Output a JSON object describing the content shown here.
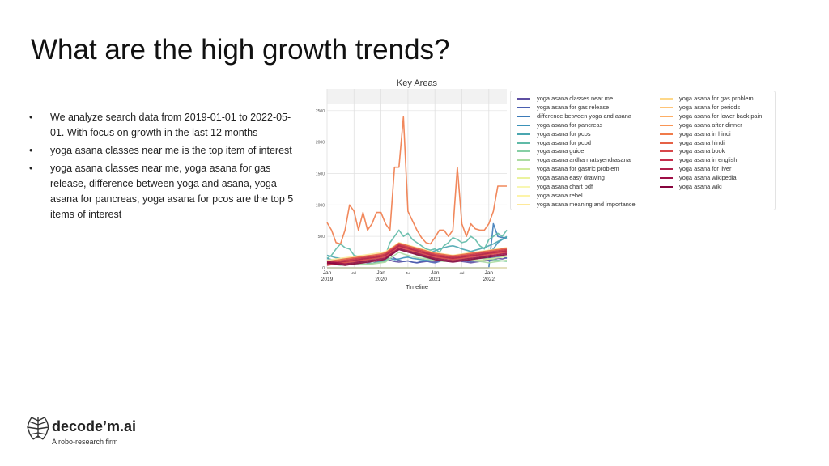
{
  "slide": {
    "title": "What are the high growth trends?",
    "bullets": [
      "We analyze search data from 2019-01-01 to 2022-05-01. With focus on growth in the last 12 months",
      "yoga asana classes near me is the top item of interest",
      "yoga asana classes near me, yoga asana for gas release, difference between yoga and asana, yoga asana for pancreas, yoga asana for pcos are the top 5 items of interest"
    ],
    "bullet_marker": "•"
  },
  "logo": {
    "name": "decode’m.ai",
    "tagline": "A robo-research firm",
    "icon": "brain-icon"
  },
  "chart_data": {
    "type": "line",
    "title": "Key Areas",
    "xlabel": "Timeline",
    "ylabel": "",
    "ylim": [
      0,
      2600
    ],
    "yticks": [
      0,
      500,
      1000,
      1500,
      2000,
      2500
    ],
    "xticks": [
      {
        "date": "2019-01",
        "label": [
          "Jan",
          "2019"
        ]
      },
      {
        "date": "2019-07",
        "label": [
          "Jul"
        ]
      },
      {
        "date": "2020-01",
        "label": [
          "Jan",
          "2020"
        ]
      },
      {
        "date": "2020-07",
        "label": [
          "Jul"
        ]
      },
      {
        "date": "2021-01",
        "label": [
          "Jan",
          "2021"
        ]
      },
      {
        "date": "2021-07",
        "label": [
          "Jul"
        ]
      },
      {
        "date": "2022-01",
        "label": [
          "Jan",
          "2022"
        ]
      }
    ],
    "xrange": [
      "2019-01",
      "2022-05"
    ],
    "grid": true,
    "legend_position": "right",
    "x": [
      "2019-01",
      "2019-02",
      "2019-03",
      "2019-04",
      "2019-05",
      "2019-06",
      "2019-07",
      "2019-08",
      "2019-09",
      "2019-10",
      "2019-11",
      "2019-12",
      "2020-01",
      "2020-02",
      "2020-03",
      "2020-04",
      "2020-05",
      "2020-06",
      "2020-07",
      "2020-08",
      "2020-09",
      "2020-10",
      "2020-11",
      "2020-12",
      "2021-01",
      "2021-02",
      "2021-03",
      "2021-04",
      "2021-05",
      "2021-06",
      "2021-07",
      "2021-08",
      "2021-09",
      "2021-10",
      "2021-11",
      "2021-12",
      "2022-01",
      "2022-02",
      "2022-03",
      "2022-04",
      "2022-05"
    ],
    "series": [
      {
        "name": "yoga asana classes near me",
        "color": "#5e4fa2",
        "values": [
          100,
          90,
          80,
          70,
          60,
          70,
          80,
          100,
          90,
          80,
          70,
          90,
          100,
          110,
          120,
          100,
          90,
          100,
          110,
          90,
          80,
          90,
          100,
          110,
          100,
          120,
          110,
          100,
          150,
          120,
          100,
          90,
          80,
          90,
          100,
          110,
          120,
          130,
          150,
          140,
          160
        ]
      },
      {
        "name": "yoga asana for gas release",
        "color": "#4a5fb0",
        "values": [
          120,
          100,
          90,
          80,
          60,
          50,
          70,
          80,
          60,
          50,
          70,
          80,
          90,
          100,
          200,
          150,
          120,
          100,
          110,
          90,
          80,
          100,
          110,
          90,
          80,
          100,
          120,
          150,
          140,
          130,
          120,
          110,
          100,
          110,
          120,
          130,
          150,
          160,
          170,
          180,
          150
        ]
      },
      {
        "name": "difference between yoga and asana",
        "color": "#3b7ab8",
        "values": [
          0,
          0,
          0,
          0,
          0,
          0,
          0,
          0,
          0,
          0,
          0,
          0,
          0,
          0,
          0,
          0,
          0,
          0,
          0,
          0,
          0,
          0,
          0,
          0,
          0,
          0,
          0,
          0,
          0,
          0,
          0,
          0,
          0,
          0,
          0,
          0,
          0,
          700,
          500,
          480,
          480
        ]
      },
      {
        "name": "yoga asana for pancreas",
        "color": "#3b92b8",
        "values": [
          150,
          130,
          120,
          100,
          90,
          100,
          120,
          110,
          100,
          120,
          130,
          110,
          100,
          120,
          150,
          130,
          140,
          160,
          170,
          150,
          140,
          130,
          120,
          130,
          140,
          150,
          160,
          170,
          180,
          170,
          160,
          150,
          140,
          150,
          160,
          170,
          250,
          300,
          400,
          450,
          480
        ]
      },
      {
        "name": "yoga asana for pcos",
        "color": "#4aa6b0",
        "values": [
          200,
          180,
          160,
          150,
          140,
          150,
          160,
          150,
          140,
          150,
          160,
          170,
          180,
          200,
          220,
          250,
          300,
          280,
          260,
          250,
          240,
          230,
          220,
          250,
          270,
          300,
          320,
          340,
          350,
          330,
          300,
          280,
          260,
          280,
          300,
          320,
          350,
          380,
          420,
          450,
          500
        ]
      },
      {
        "name": "yoga asana for pcod",
        "color": "#5fbaa7",
        "values": [
          150,
          200,
          300,
          380,
          320,
          300,
          200,
          180,
          150,
          140,
          160,
          150,
          160,
          200,
          400,
          500,
          600,
          500,
          550,
          450,
          400,
          350,
          300,
          280,
          300,
          250,
          350,
          400,
          480,
          450,
          400,
          420,
          500,
          450,
          350,
          300,
          450,
          500,
          550,
          500,
          600
        ]
      },
      {
        "name": "yoga asana guide",
        "color": "#86cfa5",
        "values": [
          50,
          60,
          50,
          40,
          50,
          60,
          70,
          60,
          50,
          60,
          70,
          80,
          90,
          100,
          200,
          300,
          400,
          350,
          300,
          250,
          200,
          180,
          160,
          150,
          140,
          130,
          120,
          110,
          100,
          110,
          120,
          130,
          140,
          150,
          160,
          150,
          140,
          130,
          120,
          110,
          100
        ]
      },
      {
        "name": "yoga asana ardha matsyendrasana",
        "color": "#acdca2",
        "values": [
          40,
          50,
          60,
          50,
          40,
          50,
          60,
          70,
          60,
          50,
          60,
          70,
          80,
          90,
          150,
          200,
          250,
          220,
          200,
          180,
          160,
          150,
          140,
          130,
          120,
          110,
          100,
          110,
          120,
          130,
          140,
          130,
          120,
          110,
          100,
          90,
          80,
          90,
          100,
          110,
          120
        ]
      },
      {
        "name": "yoga asana for gastric problem",
        "color": "#d1ec9c",
        "values": [
          80,
          70,
          60,
          70,
          80,
          90,
          80,
          70,
          80,
          90,
          100,
          110,
          120,
          150,
          200,
          250,
          300,
          280,
          260,
          240,
          220,
          200,
          180,
          170,
          160,
          150,
          140,
          150,
          160,
          170,
          160,
          150,
          140,
          130,
          120,
          130,
          140,
          150,
          160,
          170,
          180
        ]
      },
      {
        "name": "yoga asana easy drawing",
        "color": "#ebf39e",
        "values": [
          60,
          70,
          80,
          90,
          100,
          110,
          120,
          130,
          140,
          150,
          160,
          170,
          180,
          200,
          250,
          300,
          350,
          320,
          300,
          280,
          260,
          240,
          220,
          200,
          180,
          170,
          160,
          150,
          140,
          150,
          160,
          170,
          180,
          190,
          200,
          210,
          220,
          230,
          240,
          250,
          260
        ]
      },
      {
        "name": "yoga asana chart pdf",
        "color": "#f8f7b3",
        "values": [
          100,
          110,
          120,
          130,
          140,
          150,
          160,
          170,
          180,
          190,
          200,
          210,
          220,
          250,
          300,
          350,
          400,
          380,
          360,
          340,
          320,
          300,
          280,
          260,
          240,
          220,
          200,
          190,
          180,
          190,
          200,
          210,
          220,
          230,
          240,
          250,
          260,
          270,
          280,
          290,
          300
        ]
      },
      {
        "name": "yoga asana rebel",
        "color": "#fdf4a9",
        "values": [
          0,
          0,
          0,
          0,
          0,
          0,
          0,
          0,
          0,
          0,
          0,
          0,
          0,
          0,
          0,
          0,
          0,
          0,
          0,
          0,
          0,
          0,
          0,
          0,
          0,
          0,
          0,
          0,
          0,
          0,
          0,
          0,
          0,
          0,
          0,
          0,
          0,
          0,
          0,
          0,
          0
        ]
      },
      {
        "name": "yoga asana meaning and importance",
        "color": "#fee99a",
        "values": [
          120,
          130,
          140,
          150,
          160,
          170,
          180,
          190,
          200,
          210,
          220,
          230,
          240,
          260,
          300,
          350,
          400,
          380,
          360,
          340,
          320,
          300,
          280,
          260,
          240,
          230,
          220,
          210,
          200,
          210,
          220,
          230,
          240,
          250,
          260,
          270,
          280,
          290,
          300,
          310,
          320
        ]
      },
      {
        "name": "yoga asana for gas problem",
        "color": "#fed889",
        "values": [
          90,
          100,
          110,
          120,
          130,
          140,
          150,
          160,
          170,
          180,
          190,
          200,
          210,
          230,
          280,
          330,
          380,
          360,
          340,
          320,
          300,
          280,
          260,
          240,
          220,
          210,
          200,
          190,
          180,
          190,
          200,
          210,
          220,
          230,
          240,
          250,
          260,
          270,
          280,
          290,
          300
        ]
      },
      {
        "name": "yoga asana for periods",
        "color": "#fec478",
        "values": [
          70,
          80,
          90,
          100,
          110,
          120,
          130,
          140,
          150,
          160,
          170,
          180,
          190,
          210,
          260,
          310,
          360,
          340,
          320,
          300,
          280,
          260,
          240,
          220,
          200,
          190,
          180,
          170,
          160,
          170,
          180,
          190,
          200,
          210,
          220,
          230,
          240,
          250,
          260,
          270,
          280
        ]
      },
      {
        "name": "yoga asana for lower back pain",
        "color": "#fdae65",
        "values": [
          60,
          70,
          80,
          90,
          100,
          110,
          120,
          130,
          140,
          150,
          160,
          170,
          180,
          200,
          250,
          300,
          350,
          330,
          310,
          290,
          270,
          250,
          230,
          210,
          190,
          180,
          170,
          160,
          150,
          160,
          170,
          180,
          190,
          200,
          210,
          220,
          230,
          240,
          250,
          260,
          270
        ]
      },
      {
        "name": "yoga asana after dinner",
        "color": "#f99555",
        "values": [
          50,
          60,
          70,
          80,
          90,
          100,
          110,
          120,
          130,
          140,
          150,
          160,
          170,
          190,
          240,
          290,
          340,
          320,
          300,
          280,
          260,
          240,
          220,
          200,
          180,
          170,
          160,
          150,
          140,
          150,
          160,
          170,
          180,
          190,
          200,
          210,
          220,
          230,
          240,
          250,
          260
        ]
      },
      {
        "name": "yoga asana in hindi",
        "color": "#f07b4a",
        "values": [
          720,
          600,
          400,
          380,
          600,
          1000,
          900,
          600,
          880,
          600,
          700,
          880,
          880,
          700,
          600,
          1600,
          1600,
          2400,
          900,
          750,
          600,
          480,
          400,
          380,
          480,
          600,
          600,
          500,
          600,
          1600,
          700,
          500,
          700,
          620,
          600,
          600,
          700,
          900,
          1300,
          1300,
          1300
        ]
      },
      {
        "name": "yoga asana hindi",
        "color": "#e56146",
        "values": [
          100,
          110,
          120,
          130,
          140,
          150,
          160,
          170,
          180,
          190,
          200,
          210,
          220,
          240,
          290,
          340,
          390,
          370,
          350,
          330,
          310,
          290,
          270,
          250,
          230,
          220,
          210,
          200,
          190,
          200,
          210,
          220,
          230,
          240,
          250,
          260,
          270,
          280,
          290,
          300,
          310
        ]
      },
      {
        "name": "yoga asana book",
        "color": "#d8474b",
        "values": [
          40,
          50,
          60,
          70,
          80,
          90,
          100,
          110,
          120,
          130,
          140,
          150,
          160,
          180,
          230,
          280,
          330,
          310,
          290,
          270,
          250,
          230,
          210,
          190,
          170,
          160,
          150,
          140,
          130,
          140,
          150,
          160,
          170,
          180,
          190,
          200,
          210,
          220,
          230,
          240,
          250
        ]
      },
      {
        "name": "yoga asana in english",
        "color": "#c52f4d",
        "values": [
          80,
          90,
          100,
          110,
          120,
          130,
          140,
          150,
          160,
          170,
          180,
          190,
          200,
          220,
          270,
          320,
          370,
          350,
          330,
          310,
          290,
          270,
          250,
          230,
          210,
          200,
          190,
          180,
          170,
          180,
          190,
          200,
          210,
          220,
          230,
          240,
          250,
          260,
          270,
          280,
          290
        ]
      },
      {
        "name": "yoga asana for liver",
        "color": "#b0204b",
        "values": [
          60,
          70,
          80,
          90,
          100,
          110,
          120,
          130,
          140,
          150,
          160,
          170,
          180,
          200,
          250,
          300,
          350,
          330,
          310,
          290,
          270,
          250,
          230,
          210,
          190,
          180,
          170,
          160,
          150,
          160,
          170,
          180,
          190,
          200,
          210,
          220,
          230,
          240,
          250,
          260,
          270
        ]
      },
      {
        "name": "yoga asana wikipedia",
        "color": "#9e0e46",
        "values": [
          100,
          90,
          80,
          70,
          60,
          70,
          80,
          90,
          100,
          110,
          120,
          130,
          140,
          160,
          210,
          260,
          310,
          290,
          270,
          250,
          230,
          210,
          190,
          170,
          150,
          140,
          130,
          120,
          110,
          120,
          130,
          140,
          150,
          160,
          170,
          180,
          190,
          200,
          210,
          220,
          230
        ]
      },
      {
        "name": "yoga asana wiki",
        "color": "#86043e",
        "values": [
          80,
          70,
          60,
          50,
          40,
          50,
          60,
          70,
          80,
          90,
          100,
          110,
          120,
          140,
          190,
          240,
          290,
          270,
          250,
          230,
          210,
          190,
          170,
          150,
          130,
          120,
          110,
          100,
          90,
          100,
          110,
          120,
          130,
          140,
          150,
          160,
          170,
          180,
          190,
          200,
          210
        ]
      }
    ]
  }
}
